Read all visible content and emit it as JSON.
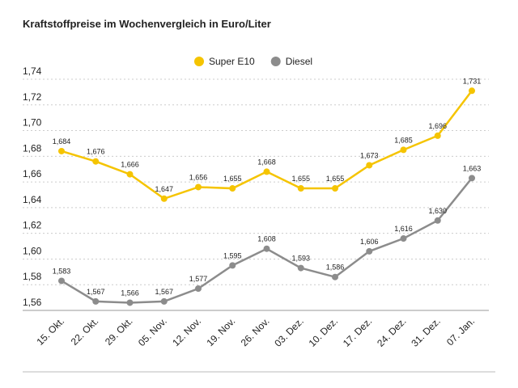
{
  "chart_data": {
    "type": "line",
    "title": "Kraftstoffpreise im Wochenvergleich in Euro/Liter",
    "categories": [
      "15. Okt.",
      "22. Okt.",
      "29. Okt.",
      "05. Nov.",
      "12. Nov.",
      "19. Nov.",
      "26. Nov.",
      "03. Dez.",
      "10. Dez.",
      "17. Dez.",
      "24. Dez.",
      "31. Dez.",
      "07. Jan."
    ],
    "series": [
      {
        "name": "Super E10",
        "color": "#f5c400",
        "values": [
          1.684,
          1.676,
          1.666,
          1.647,
          1.656,
          1.655,
          1.668,
          1.655,
          1.655,
          1.673,
          1.685,
          1.696,
          1.731
        ],
        "value_labels": [
          "1,684",
          "1,676",
          "1,666",
          "1,647",
          "1,656",
          "1,655",
          "1,668",
          "1,655",
          "1,655",
          "1,673",
          "1,685",
          "1,696",
          "1,731"
        ]
      },
      {
        "name": "Diesel",
        "color": "#8c8c8c",
        "values": [
          1.583,
          1.567,
          1.566,
          1.567,
          1.577,
          1.595,
          1.608,
          1.593,
          1.586,
          1.606,
          1.616,
          1.63,
          1.663
        ],
        "value_labels": [
          "1,583",
          "1,567",
          "1,566",
          "1,567",
          "1,577",
          "1,595",
          "1,608",
          "1,593",
          "1,586",
          "1,606",
          "1,616",
          "1,630",
          "1,663"
        ]
      }
    ],
    "ylim": [
      1.56,
      1.74
    ],
    "yticks": [
      {
        "value": 1.56,
        "label": "1,56"
      },
      {
        "value": 1.58,
        "label": "1,58"
      },
      {
        "value": 1.6,
        "label": "1,60"
      },
      {
        "value": 1.62,
        "label": "1,62"
      },
      {
        "value": 1.64,
        "label": "1,64"
      },
      {
        "value": 1.66,
        "label": "1,66"
      },
      {
        "value": 1.68,
        "label": "1,68"
      },
      {
        "value": 1.7,
        "label": "1,70"
      },
      {
        "value": 1.72,
        "label": "1,72"
      },
      {
        "value": 1.74,
        "label": "1,74"
      }
    ],
    "grid": true,
    "legend": "top"
  }
}
